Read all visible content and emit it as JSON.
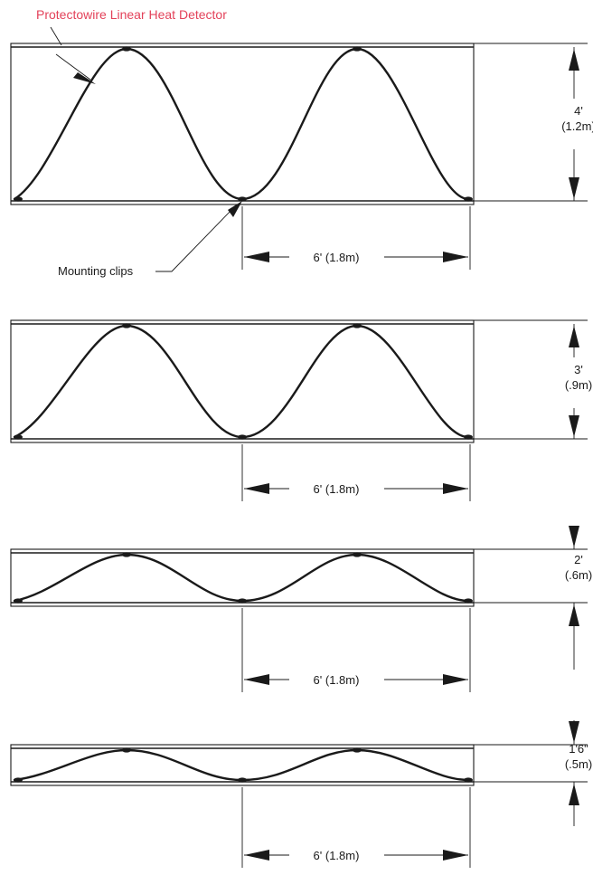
{
  "callouts": {
    "detector": "Protectowire Linear Heat Detector",
    "clips": "Mounting clips"
  },
  "panels": [
    {
      "height_label": "4'",
      "height_metric": "(1.2m)",
      "width_label": "6' (1.8m)"
    },
    {
      "height_label": "3'",
      "height_metric": "(.9m)",
      "width_label": "6' (1.8m)"
    },
    {
      "height_label": "2'",
      "height_metric": "(.6m)",
      "width_label": "6' (1.8m)"
    },
    {
      "height_label": "1'6\"",
      "height_metric": "(.5m)",
      "width_label": "6' (1.8m)"
    }
  ],
  "colors": {
    "callout_red": "#e3425a",
    "ink": "#1a1a1a"
  }
}
